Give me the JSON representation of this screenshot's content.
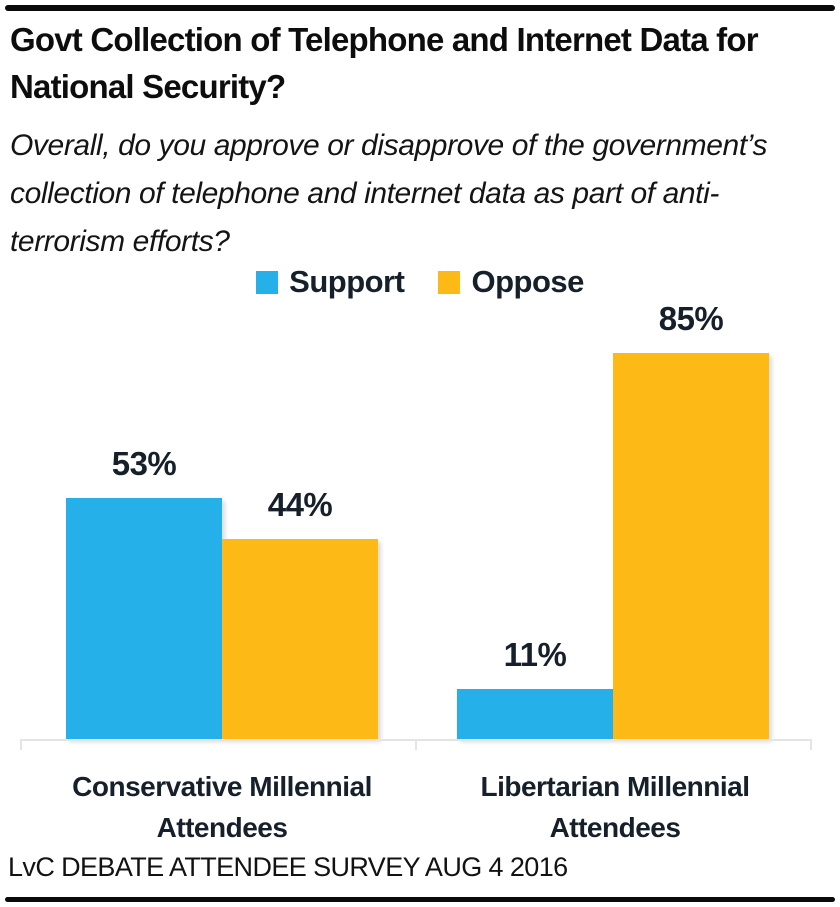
{
  "header": {
    "title": "Govt Collection of Telephone and Internet Data for National Security?",
    "subtitle": "Overall, do you approve or disapprove of the government’s collection of telephone and internet data as part of anti-terrorism efforts?"
  },
  "footer": {
    "source": "LvC DEBATE ATTENDEE SURVEY AUG 4 2016"
  },
  "colors": {
    "support": "#25b0ea",
    "oppose": "#fdb916",
    "text_dark": "#15202b",
    "axis": "#e4e4e4",
    "rule": "#0a0a0a"
  },
  "chart_data": {
    "type": "bar",
    "title": "Govt Collection of Telephone and Internet Data for National Security?",
    "categories": [
      "Conservative Millennial Attendees",
      "Libertarian Millennial Attendees"
    ],
    "series": [
      {
        "name": "Support",
        "color": "#25b0ea",
        "values": [
          53,
          11
        ],
        "labels": [
          "53%",
          "11%"
        ]
      },
      {
        "name": "Oppose",
        "color": "#fdb916",
        "values": [
          44,
          85
        ],
        "labels": [
          "44%",
          "85%"
        ]
      }
    ],
    "ylim": [
      0,
      100
    ],
    "value_format": "percent",
    "grid": false,
    "legend_position": "top",
    "xlabel": "",
    "ylabel": ""
  }
}
